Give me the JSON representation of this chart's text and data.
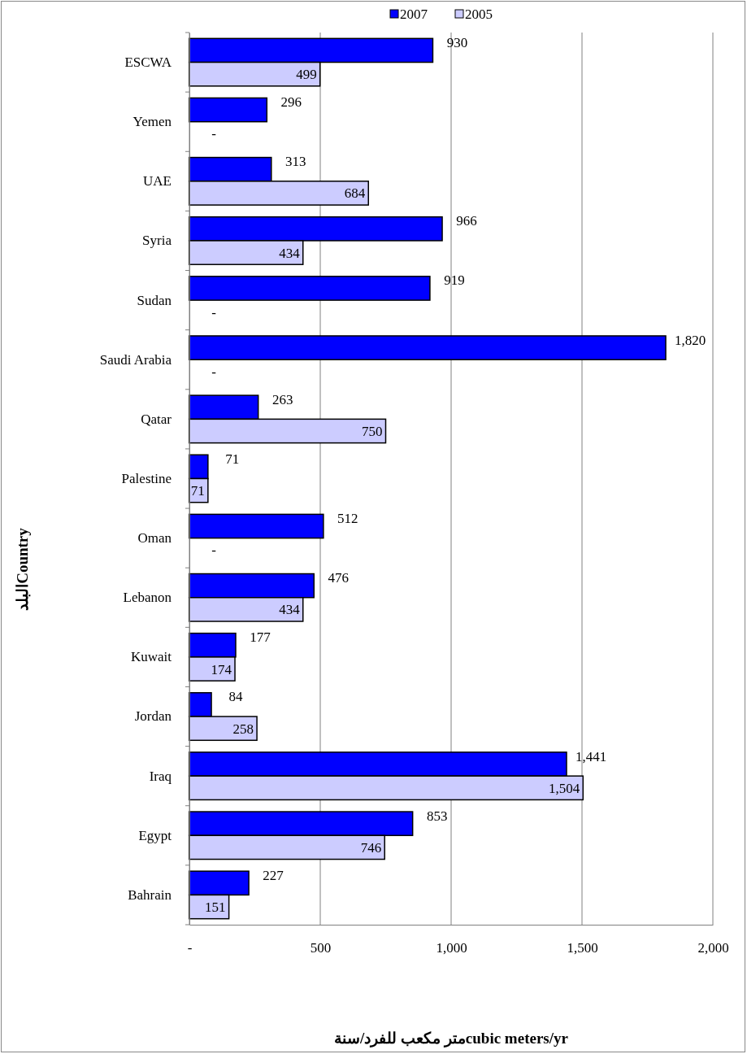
{
  "chart_data": {
    "type": "bar",
    "orientation": "horizontal",
    "categories": [
      "ESCWA",
      "Yemen",
      "UAE",
      "Syria",
      "Sudan",
      "Saudi Arabia",
      "Qatar",
      "Palestine",
      "Oman",
      "Lebanon",
      "Kuwait",
      "Jordan",
      "Iraq",
      "Egypt",
      "Bahrain"
    ],
    "series": [
      {
        "name": "2007",
        "color": "#0000ff",
        "values": [
          930,
          296,
          313,
          966,
          919,
          1820,
          263,
          71,
          512,
          476,
          177,
          84,
          1441,
          853,
          227
        ],
        "value_labels": [
          "930",
          "296",
          "313",
          "966",
          "919",
          "1,820",
          "263",
          "71",
          "512",
          "476",
          "177",
          "84",
          "1,441",
          "853",
          "227"
        ]
      },
      {
        "name": "2005",
        "color": "#ccccff",
        "values": [
          499,
          null,
          684,
          434,
          null,
          null,
          750,
          71,
          null,
          434,
          174,
          258,
          1504,
          746,
          151
        ],
        "value_labels": [
          "499",
          "-",
          "684",
          "434",
          "-",
          "-",
          "750",
          "71",
          "-",
          "434",
          "174",
          "258",
          "1,504",
          "746",
          "151"
        ]
      }
    ],
    "xlim": [
      0,
      2000
    ],
    "xticks": [
      {
        "value": 0,
        "label": "-"
      },
      500,
      {
        "value": 1000,
        "label": "1,000"
      },
      {
        "value": 1500,
        "label": "1,500"
      },
      {
        "value": 2000,
        "label": "2,000"
      }
    ],
    "xlabel": "متر مكعب للفرد/سنةcubic meters/yr",
    "ylabel": "البلدCountry",
    "grid": "x",
    "legend": "top"
  }
}
